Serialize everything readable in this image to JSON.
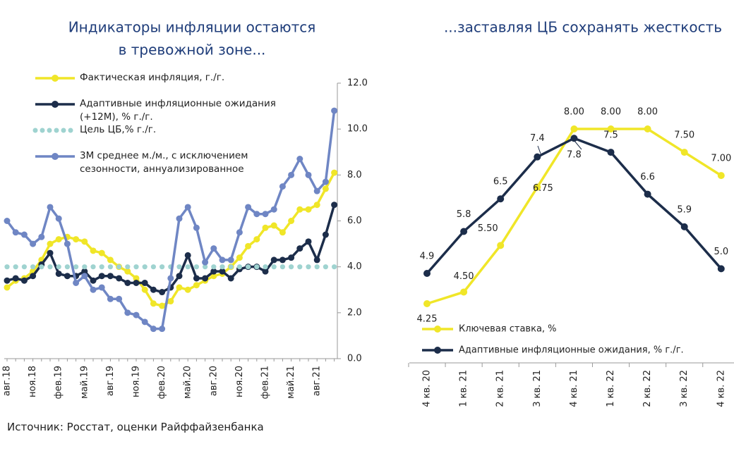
{
  "chart_data": [
    {
      "type": "line",
      "title": [
        "Индикаторы инфляции остаются",
        "в тревожной зоне..."
      ],
      "categories": [
        "авг.18",
        null,
        null,
        "ноя.18",
        null,
        null,
        "фев.19",
        null,
        null,
        "май.19",
        null,
        null,
        "авг.19",
        null,
        null,
        "ноя.19",
        null,
        null,
        "фев.20",
        null,
        null,
        "май.20",
        null,
        null,
        "авг.20",
        null,
        null,
        "ноя.20",
        null,
        null,
        "фев.21",
        null,
        null,
        "май.21",
        null,
        null,
        "авг.21",
        null,
        null
      ],
      "series": [
        {
          "name": "Фактическая инфляция, г./г.",
          "color": "#f0e628",
          "marker": "circle",
          "values": [
            3.1,
            3.4,
            3.5,
            3.8,
            4.3,
            5.0,
            5.2,
            5.3,
            5.2,
            5.1,
            4.7,
            4.6,
            4.3,
            4.0,
            3.8,
            3.5,
            3.0,
            2.4,
            2.3,
            2.5,
            3.1,
            3.0,
            3.2,
            3.4,
            3.6,
            3.7,
            4.0,
            4.4,
            4.9,
            5.2,
            5.7,
            5.8,
            5.5,
            6.0,
            6.5,
            6.5,
            6.7,
            7.4,
            8.1
          ]
        },
        {
          "name": "Адаптивные инфляционные ожидания (+12М), % г./г.",
          "color": "#1c2d4a",
          "marker": "circle",
          "values": [
            3.4,
            3.5,
            3.4,
            3.6,
            4.1,
            4.6,
            3.7,
            3.6,
            3.6,
            3.8,
            3.4,
            3.6,
            3.6,
            3.5,
            3.3,
            3.3,
            3.3,
            3.0,
            2.9,
            3.1,
            3.6,
            4.5,
            3.5,
            3.5,
            3.8,
            3.8,
            3.5,
            3.9,
            4.0,
            4.0,
            3.8,
            4.3,
            4.3,
            4.4,
            4.8,
            5.1,
            4.3,
            5.4,
            6.7
          ]
        },
        {
          "name": "Цель ЦБ,% г./г.",
          "color": "#9fd3d0",
          "marker": "dot",
          "values": [
            4,
            4,
            4,
            4,
            4,
            4,
            4,
            4,
            4,
            4,
            4,
            4,
            4,
            4,
            4,
            4,
            4,
            4,
            4,
            4,
            4,
            4,
            4,
            4,
            4,
            4,
            4,
            4,
            4,
            4,
            4,
            4,
            4,
            4,
            4,
            4,
            4,
            4,
            4
          ]
        },
        {
          "name": "3М среднее м./м., с исключением сезонности, аннуализированное",
          "color": "#6f86c4",
          "marker": "circle",
          "values": [
            6.0,
            5.5,
            5.4,
            5.0,
            5.3,
            6.6,
            6.1,
            5.0,
            3.3,
            3.6,
            3.0,
            3.1,
            2.6,
            2.6,
            2.0,
            1.9,
            1.6,
            1.3,
            1.3,
            3.5,
            6.1,
            6.6,
            5.7,
            4.2,
            4.8,
            4.3,
            4.3,
            5.5,
            6.6,
            6.3,
            6.3,
            6.5,
            7.5,
            8.0,
            8.7,
            8.0,
            7.3,
            7.7,
            10.8
          ]
        }
      ],
      "ylim": [
        0,
        12
      ],
      "yticks": [
        {
          "value": 0,
          "label": "0.0"
        },
        {
          "value": 2,
          "label": "2.0"
        },
        {
          "value": 4,
          "label": "4.0"
        },
        {
          "value": 6,
          "label": "6.0"
        },
        {
          "value": 8,
          "label": "8.0"
        },
        {
          "value": 10,
          "label": "10.0"
        },
        {
          "value": 12,
          "label": "12.0"
        }
      ]
    },
    {
      "type": "line",
      "title": [
        "...заставляя ЦБ сохранять жесткость"
      ],
      "categories": [
        "4 кв. 20",
        "1 кв. 21",
        "2 кв. 21",
        "3 кв. 21",
        "4 кв. 21",
        "1 кв. 22",
        "2 кв. 22",
        "3 кв. 22",
        "4 кв. 22"
      ],
      "series": [
        {
          "name": "Ключевая ставка, %",
          "color": "#f0e628",
          "values": [
            4.25,
            4.5,
            5.5,
            6.75,
            8,
            8,
            8,
            7.5,
            7
          ],
          "value_labels": [
            "4.25",
            "4.50",
            "5.50",
            "6.75",
            "8.00",
            "8.00",
            "8.00",
            "7.50",
            "7.00"
          ]
        },
        {
          "name": "Адаптивные инфляционные ожидания, % г./г.",
          "color": "#1c2d4a",
          "values": [
            4.9,
            5.8,
            6.5,
            7.4,
            7.8,
            7.5,
            6.6,
            5.9,
            5
          ],
          "value_labels": [
            "4.9",
            "5.8",
            "6.5",
            "7.4",
            "7.8",
            "7.5",
            "6.6",
            "5.9",
            "5.0"
          ]
        }
      ]
    }
  ],
  "source": "Источник: Росстат, оценки Райффайзенбанка"
}
